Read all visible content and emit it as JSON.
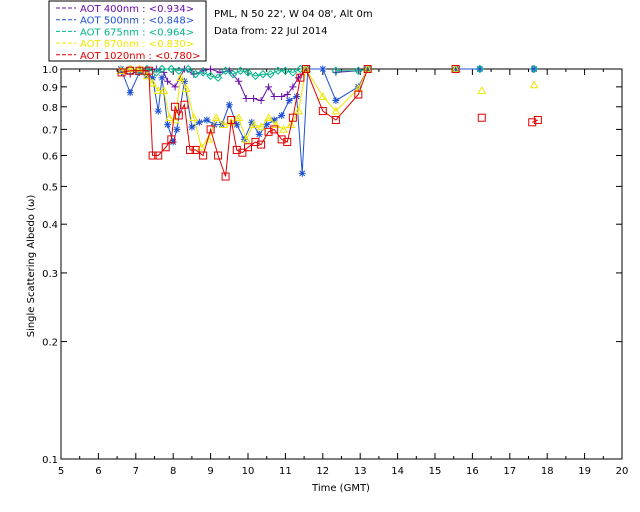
{
  "info": {
    "site": "PML, N 50 22', W 04 08', Alt 0m",
    "date": "Data from: 22 Jul 2014"
  },
  "chart_data": {
    "type": "scatter",
    "xlabel": "Time (GMT)",
    "ylabel": "Single Scattering Albedo (ω)",
    "xlim": [
      5,
      20
    ],
    "ylim": [
      0.1,
      1.0
    ],
    "yscale": "log",
    "x_ticks": [
      "5",
      "6",
      "7",
      "8",
      "9",
      "10",
      "11",
      "12",
      "13",
      "14",
      "15",
      "16",
      "17",
      "18",
      "19",
      "20"
    ],
    "y_ticks": [
      {
        "v": 1.0,
        "label": "1.0"
      },
      {
        "v": 0.9,
        "label": "0.9"
      },
      {
        "v": 0.8,
        "label": "0.8"
      },
      {
        "v": 0.7,
        "label": "0.7"
      },
      {
        "v": 0.6,
        "label": "0.6"
      },
      {
        "v": 0.5,
        "label": "0.5"
      },
      {
        "v": 0.4,
        "label": "0.4"
      },
      {
        "v": 0.3,
        "label": "0.3"
      },
      {
        "v": 0.2,
        "label": "0.2"
      },
      {
        "v": 0.1,
        "label": "0.1"
      }
    ],
    "legend_position": "top-left",
    "series": [
      {
        "name": "AOT  400nm : <0.934>",
        "color": "#6a0dad",
        "marker": "plus",
        "x": [
          6.62,
          6.85,
          7.1,
          7.3,
          7.55,
          7.75,
          7.85,
          8.05,
          8.3,
          8.55,
          8.8,
          9.0,
          9.25,
          9.5,
          9.75,
          9.95,
          10.15,
          10.35,
          10.55,
          10.7,
          10.9,
          11.05,
          11.2,
          11.35,
          11.55,
          12.35,
          12.95,
          13.2,
          15.55,
          16.2,
          17.6
        ],
        "y": [
          0.98,
          0.97,
          0.99,
          0.99,
          1.0,
          0.98,
          0.93,
          0.9,
          1.0,
          0.97,
          0.99,
          1.0,
          0.98,
          0.99,
          0.93,
          0.84,
          0.84,
          0.83,
          0.9,
          0.85,
          0.85,
          0.86,
          0.9,
          0.95,
          1.0,
          0.98,
          0.99,
          1.0,
          1.0,
          1.0,
          1.0
        ]
      },
      {
        "name": "AOT  500nm : <0.848>",
        "color": "#1e50d2",
        "marker": "asterisk",
        "x": [
          6.6,
          6.85,
          7.1,
          7.3,
          7.45,
          7.6,
          7.7,
          7.85,
          8.0,
          8.1,
          8.3,
          8.5,
          8.7,
          8.9,
          9.1,
          9.3,
          9.5,
          9.7,
          9.9,
          10.1,
          10.3,
          10.5,
          10.7,
          10.9,
          11.1,
          11.3,
          11.45,
          11.6,
          12.0,
          12.35,
          12.95,
          13.2,
          15.6,
          16.2,
          17.65
        ],
        "y": [
          1.0,
          0.87,
          0.98,
          0.96,
          0.95,
          0.78,
          0.95,
          0.72,
          0.65,
          0.7,
          0.93,
          0.71,
          0.73,
          0.74,
          0.72,
          0.72,
          0.81,
          0.72,
          0.66,
          0.73,
          0.68,
          0.72,
          0.74,
          0.76,
          0.83,
          0.85,
          0.54,
          1.0,
          1.0,
          0.83,
          0.9,
          1.0,
          1.0,
          1.0,
          1.0
        ]
      },
      {
        "name": "AOT  675nm : <0.964>",
        "color": "#00b48c",
        "marker": "diamond",
        "x": [
          6.62,
          6.85,
          7.1,
          7.3,
          7.55,
          7.7,
          7.95,
          8.15,
          8.4,
          8.6,
          8.8,
          9.0,
          9.2,
          9.4,
          9.6,
          9.8,
          10.0,
          10.2,
          10.4,
          10.6,
          10.8,
          11.0,
          11.2,
          11.4,
          11.55,
          12.35,
          12.95,
          13.2,
          15.55,
          16.2,
          17.65
        ],
        "y": [
          0.99,
          1.0,
          0.99,
          1.0,
          0.98,
          1.0,
          1.0,
          0.99,
          1.0,
          0.97,
          0.98,
          0.96,
          0.95,
          0.99,
          0.97,
          0.99,
          0.98,
          0.96,
          0.97,
          0.97,
          0.99,
          0.99,
          0.98,
          1.0,
          1.0,
          0.99,
          0.99,
          1.0,
          1.0,
          1.0,
          1.0
        ]
      },
      {
        "name": "AOT  870nm : <0.830>",
        "color": "#f0e600",
        "marker": "triangle",
        "x": [
          6.6,
          6.85,
          7.1,
          7.3,
          7.45,
          7.6,
          7.75,
          7.9,
          8.05,
          8.2,
          8.35,
          8.55,
          8.75,
          8.95,
          9.15,
          9.35,
          9.55,
          9.75,
          9.95,
          10.15,
          10.35,
          10.55,
          10.75,
          10.95,
          11.15,
          11.35,
          11.55,
          12.0,
          12.35,
          12.95,
          13.2,
          15.55,
          16.25,
          17.65
        ],
        "y": [
          0.99,
          1.0,
          1.0,
          0.96,
          0.92,
          0.88,
          0.88,
          0.75,
          0.74,
          0.95,
          0.89,
          0.75,
          0.63,
          0.66,
          0.75,
          0.72,
          0.73,
          0.75,
          0.66,
          0.72,
          0.71,
          0.75,
          0.72,
          0.7,
          0.72,
          0.78,
          1.0,
          0.85,
          0.78,
          0.89,
          1.0,
          1.0,
          0.88,
          0.91
        ]
      },
      {
        "name": "AOT 1020nm : <0.780>",
        "color": "#e00000",
        "marker": "square",
        "x": [
          6.62,
          6.85,
          7.1,
          7.35,
          7.45,
          7.6,
          7.8,
          7.95,
          8.05,
          8.15,
          8.3,
          8.45,
          8.6,
          8.8,
          9.0,
          9.2,
          9.4,
          9.55,
          9.7,
          9.85,
          10.0,
          10.2,
          10.35,
          10.55,
          10.7,
          10.9,
          11.05,
          11.2,
          11.4,
          11.55,
          12.0,
          12.35,
          12.95,
          13.2,
          15.55,
          16.25,
          17.6,
          17.75
        ],
        "y": [
          0.98,
          0.99,
          0.99,
          0.99,
          0.6,
          0.6,
          0.63,
          0.66,
          0.8,
          0.76,
          0.81,
          0.62,
          0.62,
          0.6,
          0.7,
          0.6,
          0.53,
          0.74,
          0.62,
          0.61,
          0.63,
          0.65,
          0.64,
          0.69,
          0.7,
          0.66,
          0.65,
          0.75,
          0.95,
          1.0,
          0.78,
          0.74,
          0.86,
          1.0,
          1.0,
          0.75,
          0.73,
          0.74
        ]
      }
    ]
  }
}
